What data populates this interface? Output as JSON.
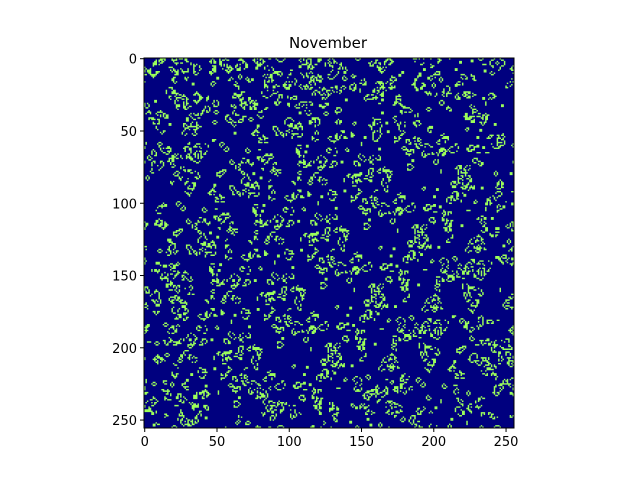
{
  "chart_data": {
    "type": "heatmap",
    "title": "November",
    "xlim": [
      -0.5,
      255.5
    ],
    "ylim": [
      255.5,
      -0.5
    ],
    "xticks": [
      0,
      50,
      100,
      150,
      200,
      250
    ],
    "yticks": [
      0,
      50,
      100,
      150,
      200,
      250
    ],
    "colors": [
      "#00007f",
      "#9cff5a"
    ]
  }
}
